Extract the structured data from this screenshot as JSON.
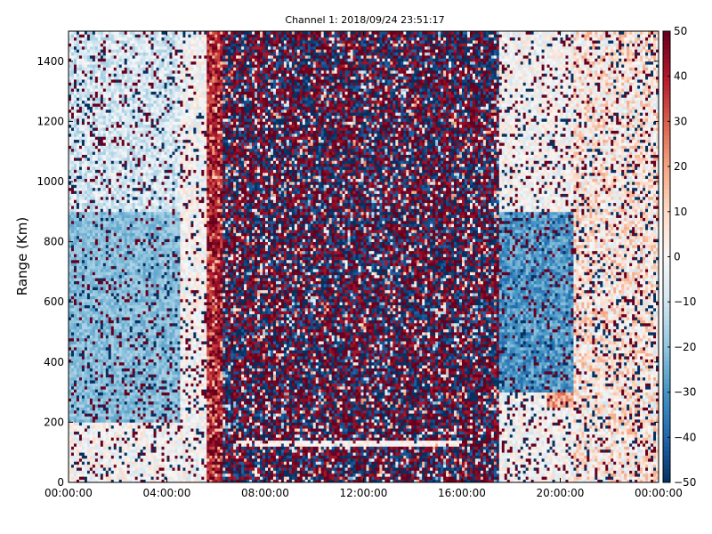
{
  "chart_data": {
    "type": "heatmap",
    "title": "Channel 1: 2018/09/24 23:51:17",
    "xlabel": "",
    "ylabel": "Range (Km)",
    "x_ticks": [
      "00:00:00",
      "04:00:00",
      "08:00:00",
      "12:00:00",
      "16:00:00",
      "20:00:00",
      "00:00:00"
    ],
    "x_range_hours": [
      0,
      24
    ],
    "y_ticks": [
      0,
      200,
      400,
      600,
      800,
      1000,
      1200,
      1400
    ],
    "ylim": [
      0,
      1500
    ],
    "colorbar": {
      "ticks": [
        50,
        40,
        30,
        20,
        10,
        0,
        -10,
        -20,
        -30,
        -40,
        -50
      ],
      "range": [
        -50,
        50
      ],
      "colormap": "RdBu_r",
      "colors": {
        "low": "#053061",
        "mid": "#f7f7f7",
        "high": "#67001f"
      }
    },
    "grid": false,
    "description_features": {
      "dense_noise_window_hours": [
        6.3,
        17.5
      ],
      "strong_positive_band_hours": [
        5.6,
        6.3
      ],
      "negative_region_early": {
        "hours": [
          0,
          4.5
        ],
        "range_km": [
          200,
          900
        ]
      },
      "negative_region_late": {
        "hours": [
          17.5,
          20.5
        ],
        "range_km": [
          300,
          900
        ]
      },
      "positive_region_late": {
        "hours": [
          19.5,
          23.0
        ],
        "range_km": [
          250,
          700
        ]
      },
      "horizontal_trace_range_km": 130
    }
  }
}
